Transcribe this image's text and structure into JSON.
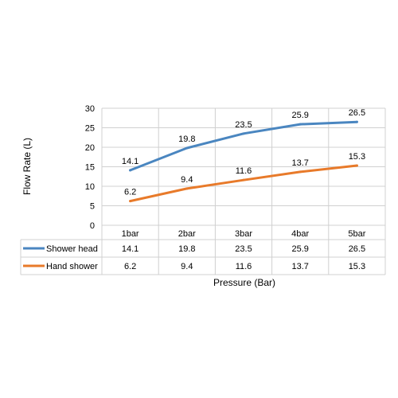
{
  "chart_data": {
    "type": "line",
    "title": "",
    "xlabel": "Pressure (Bar)",
    "ylabel": "Flow Rate (L)",
    "categories": [
      "1bar",
      "2bar",
      "3bar",
      "4bar",
      "5bar"
    ],
    "ylim": [
      0,
      30
    ],
    "yticks": [
      0,
      5,
      10,
      15,
      20,
      25,
      30
    ],
    "grid": true,
    "legend": "data table below plot",
    "series": [
      {
        "name": "Shower head",
        "color": "#4a86c0",
        "values": [
          14.1,
          19.8,
          23.5,
          25.9,
          26.5
        ]
      },
      {
        "name": "Hand shower",
        "color": "#e87a2a",
        "values": [
          6.2,
          9.4,
          11.6,
          13.7,
          15.3
        ]
      }
    ]
  }
}
